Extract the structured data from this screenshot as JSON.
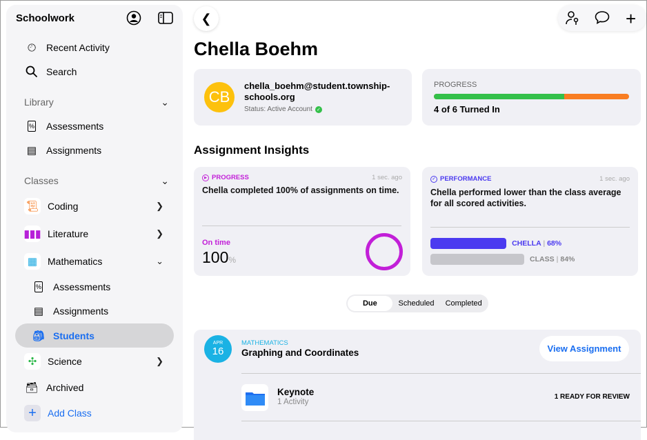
{
  "sidebar": {
    "title": "Schoolwork",
    "top_items": [
      {
        "label": "Recent Activity",
        "icon": "clock-icon"
      },
      {
        "label": "Search",
        "icon": "search-icon"
      }
    ],
    "library": {
      "label": "Library",
      "items": [
        {
          "label": "Assessments",
          "icon": "percent-doc-icon"
        },
        {
          "label": "Assignments",
          "icon": "document-icon"
        }
      ]
    },
    "classes": {
      "label": "Classes",
      "items": [
        {
          "label": "Coding",
          "color": "#f5761a"
        },
        {
          "label": "Literature",
          "color": "#b620d8"
        },
        {
          "label": "Mathematics",
          "color": "#1aa9e0"
        }
      ],
      "math_sub": [
        {
          "label": "Assessments"
        },
        {
          "label": "Assignments"
        },
        {
          "label": "Students",
          "selected": true
        }
      ],
      "science": {
        "label": "Science",
        "color": "#2db84a"
      }
    },
    "archived": "Archived",
    "add_class": "Add Class"
  },
  "header": {
    "student_name": "Chella Boehm"
  },
  "profile": {
    "initials": "CB",
    "email_line1": "chella_boehm@student.township-",
    "email_line2": "schools.org",
    "status": "Status: Active Account"
  },
  "progress": {
    "label": "PROGRESS",
    "turned_in": 4,
    "total": 6,
    "text": "4 of 6 Turned In",
    "colors": {
      "done": "#34c04a",
      "remaining": "#f97d22"
    }
  },
  "insights": {
    "title": "Assignment Insights",
    "progress_card": {
      "tag": "PROGRESS",
      "time": "1 sec. ago",
      "text": "Chella completed 100% of assignments on time.",
      "metric_label": "On time",
      "value": "100",
      "unit": "%",
      "percent": 100,
      "color": "#c21fd8"
    },
    "performance_card": {
      "tag": "PERFORMANCE",
      "time": "1 sec. ago",
      "text": "Chella performed lower than the class average for all scored activities.",
      "bars": [
        {
          "name": "CHELLA",
          "value_text": "68%",
          "value": 68,
          "color": "#4b3af0"
        },
        {
          "name": "CLASS",
          "value_text": "84%",
          "value": 84,
          "color": "#c6c6cb"
        }
      ]
    }
  },
  "segments": {
    "items": [
      "Due",
      "Scheduled",
      "Completed"
    ],
    "selected": "Due"
  },
  "assignment": {
    "month": "APR",
    "day": "16",
    "subject": "MATHEMATICS",
    "title": "Graphing and Coordinates",
    "button": "View Assignment",
    "activity": {
      "app": "Keynote",
      "count": "1 Activity",
      "status": "1 READY FOR REVIEW"
    }
  }
}
